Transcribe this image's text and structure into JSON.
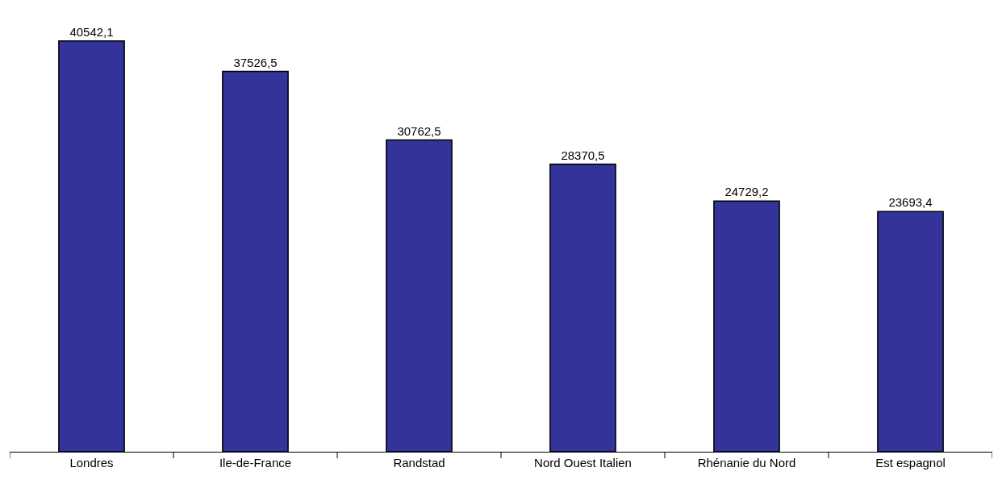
{
  "chart_data": {
    "type": "bar",
    "categories": [
      "Londres",
      "Ile-de-France",
      "Randstad",
      "Nord Ouest Italien",
      "Rhénanie du Nord",
      "Est espagnol"
    ],
    "values": [
      40542.1,
      37526.5,
      30762.5,
      28370.5,
      24729.2,
      23693.4
    ],
    "value_labels": [
      "40542,1",
      "37526,5",
      "30762,5",
      "28370,5",
      "24729,2",
      "23693,4"
    ],
    "color": "#333399",
    "tick_labels": "x"
  }
}
